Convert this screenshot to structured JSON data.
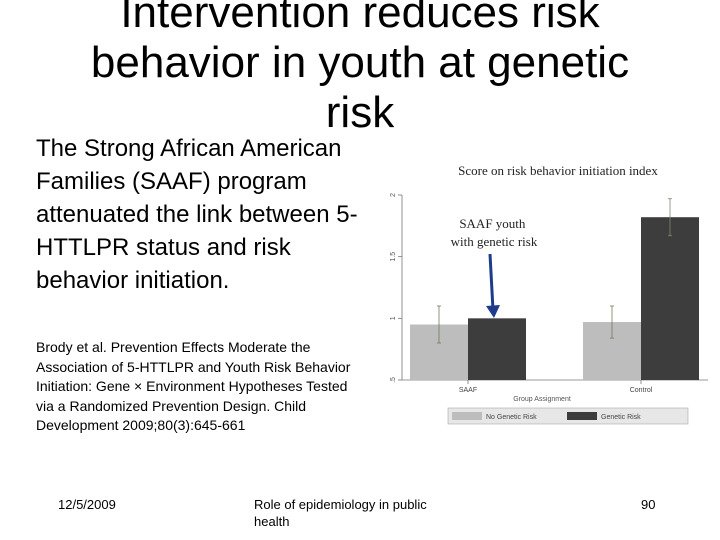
{
  "slide": {
    "title": "Intervention reduces risk\nbehavior in youth at genetic\nrisk",
    "body": "The Strong African American Families (SAAF) program attenuated the link between 5-HTTLPR status and risk behavior initiation.",
    "citation": "Brody et al. Prevention Effects Moderate the Association of 5-HTTLPR and Youth Risk Behavior Initiation: Gene × Environment Hypotheses Tested via a Randomized Prevention Design. Child Development 2009;80(3):645-661",
    "footer_date": "12/5/2009",
    "footer_center": "Role of epidemiology in public health",
    "footer_page": "90"
  },
  "chart_data": {
    "type": "bar",
    "title": "Score on risk behavior initiation index",
    "annotation": "SAAF youth with genetic risk",
    "annotation_lines": [
      "SAAF youth",
      "with genetic risk"
    ],
    "xlabel": "Group Assignment",
    "ylabel": "",
    "categories": [
      "SAAF",
      "Control"
    ],
    "series": [
      {
        "name": "No Genetic Risk",
        "values": [
          0.95,
          0.97
        ],
        "color": "#bdbdbd",
        "error": [
          0.15,
          0.13
        ]
      },
      {
        "name": "Genetic Risk",
        "values": [
          1.0,
          1.82
        ],
        "color": "#3d3d3d",
        "error": [
          0.0,
          0.15
        ]
      }
    ],
    "ylim": [
      0.5,
      2.0
    ],
    "yticks": [
      "2",
      "1.5",
      "1",
      ".5"
    ],
    "legend_position": "bottom",
    "grid": false
  }
}
